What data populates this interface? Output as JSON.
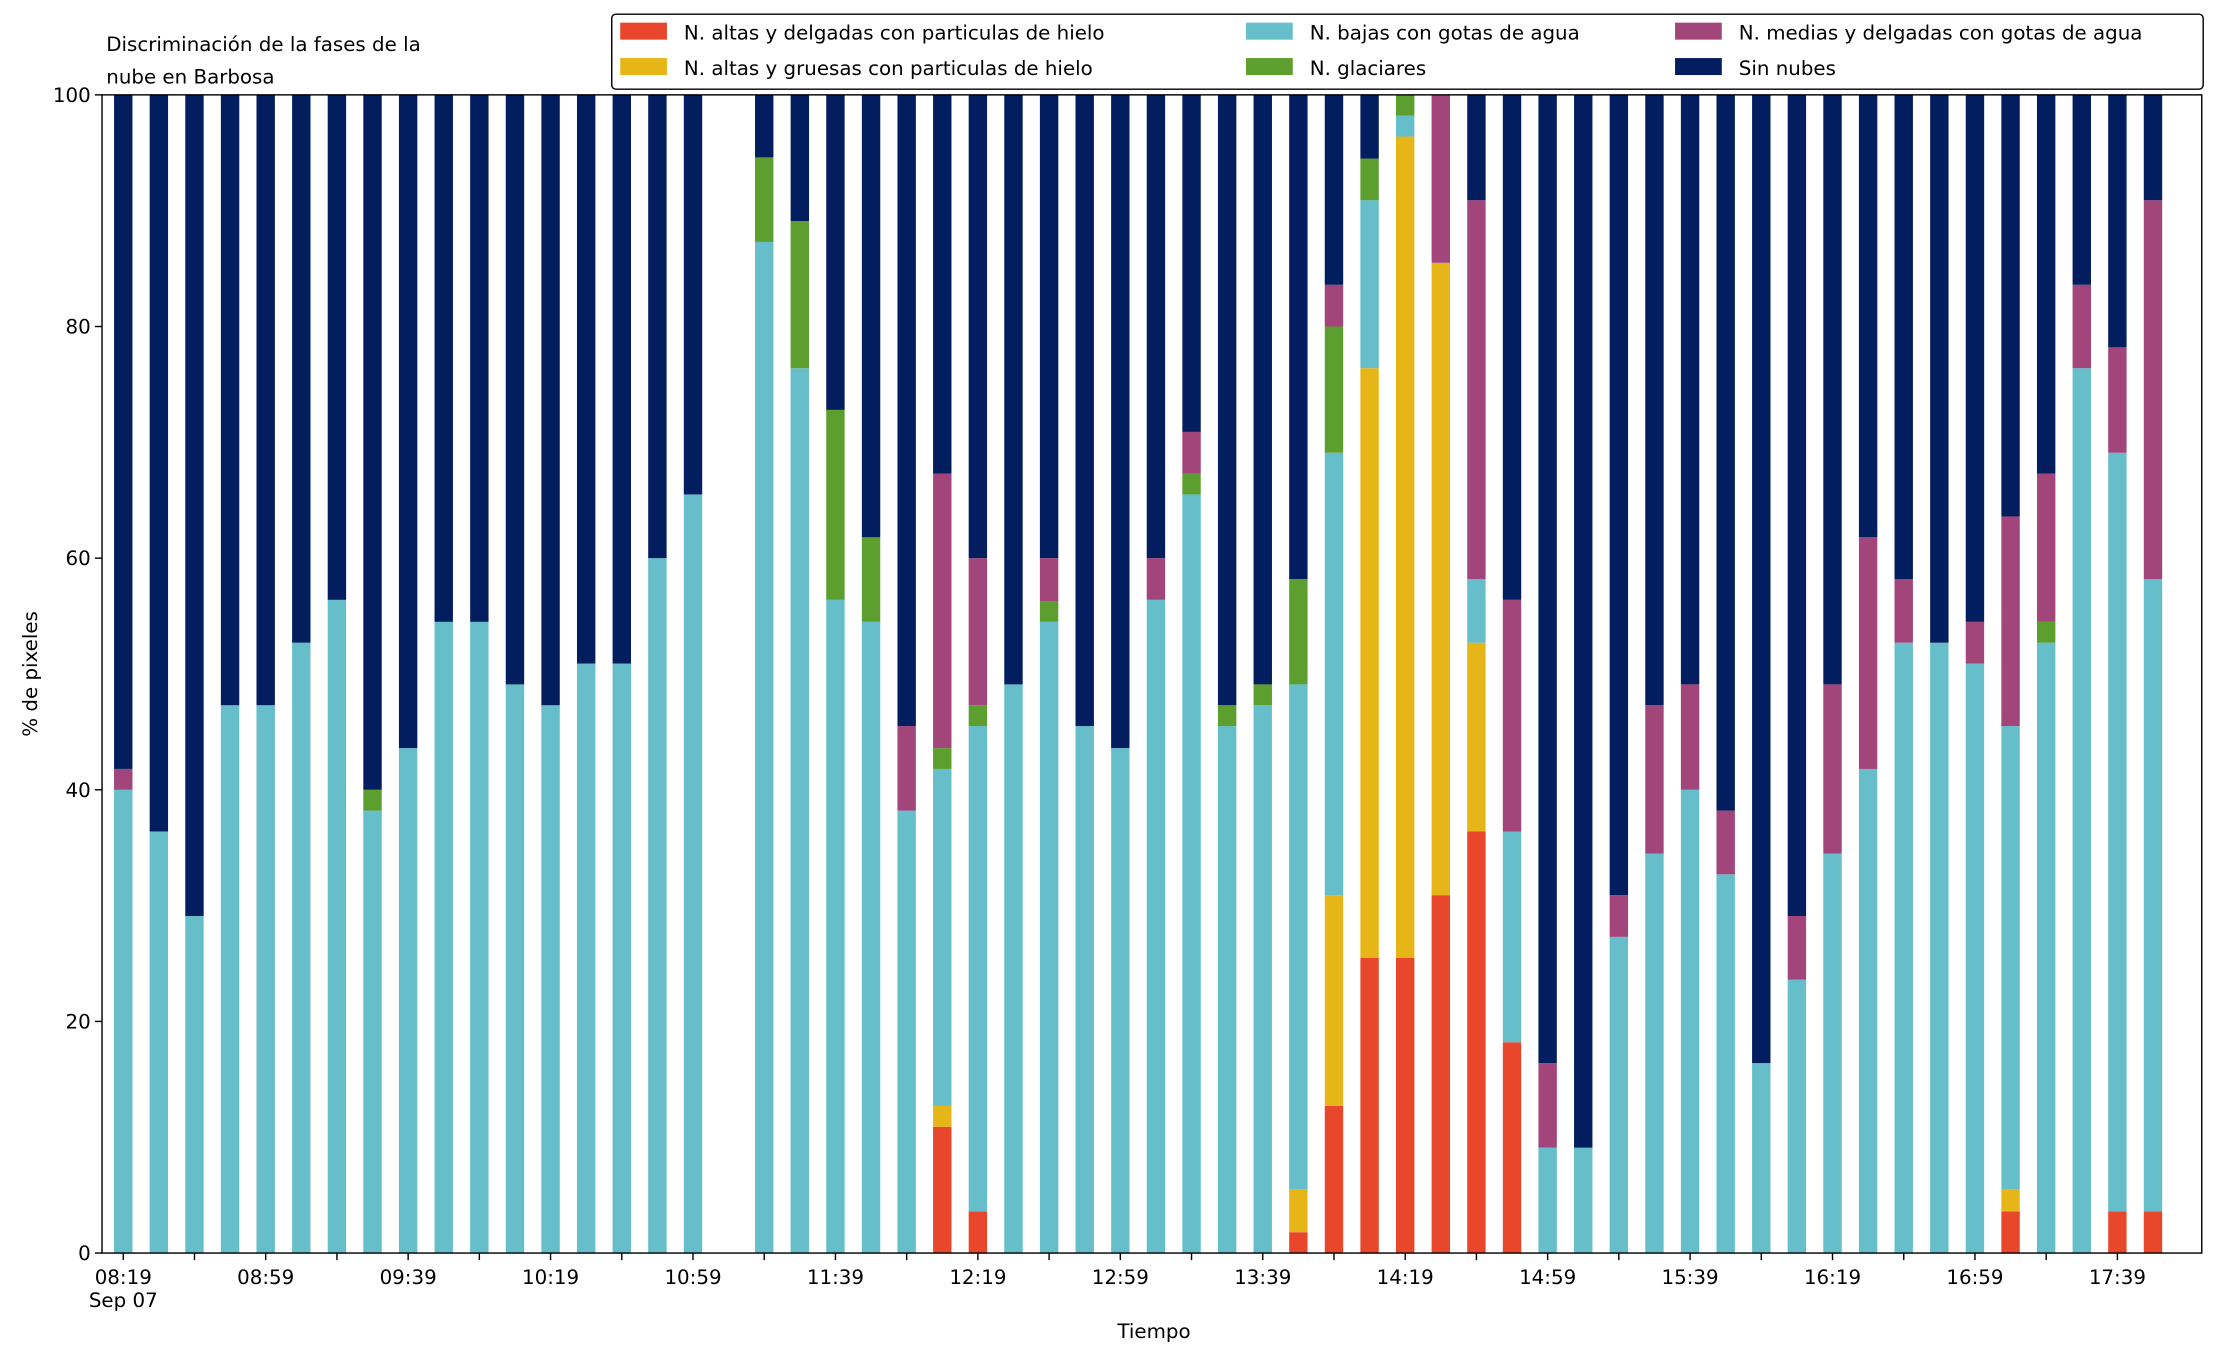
{
  "chart_data": {
    "type": "stacked_bar",
    "title": [
      "Discriminación de la fases de la",
      "nube en Barbosa"
    ],
    "xlabel": "Tiempo",
    "ylabel": "% de pixeles",
    "date_label": "Sep 07",
    "categories": [
      "08:19",
      null,
      null,
      null,
      "08:59",
      null,
      null,
      null,
      "09:39",
      null,
      null,
      null,
      "10:19",
      null,
      null,
      null,
      "10:59",
      null,
      null,
      null,
      "11:39",
      null,
      null,
      null,
      "12:19",
      null,
      null,
      null,
      "12:59",
      null,
      null,
      null,
      "13:39",
      null,
      null,
      null,
      "14:19",
      null,
      null,
      null,
      "14:59",
      null,
      null,
      null,
      "15:39",
      null,
      null,
      null,
      "16:19",
      null,
      null,
      null,
      "16:59",
      null,
      null,
      null,
      "17:39",
      null
    ],
    "ylim": [
      0,
      100
    ],
    "yticks": [
      0,
      20,
      40,
      60,
      80,
      100
    ],
    "legend": "top-right",
    "series": [
      {
        "name": "N. altas y delgadas con particulas de hielo",
        "color": "#e8472b",
        "values": [
          0,
          0,
          0,
          0,
          0,
          0,
          0,
          0,
          0,
          0,
          0,
          0,
          0,
          0,
          0,
          0,
          0,
          0,
          0,
          0,
          0,
          0,
          0,
          10.9,
          3.6,
          0,
          0,
          0,
          0,
          0,
          0,
          0,
          0,
          1.8,
          12.7,
          25.5,
          25.5,
          30.9,
          36.4,
          18.2,
          0,
          0,
          0,
          0,
          0,
          0,
          0,
          0,
          0,
          0,
          0,
          0,
          0,
          3.6,
          0,
          0,
          3.6,
          3.6
        ]
      },
      {
        "name": "N. altas y gruesas con particulas de hielo",
        "color": "#e6b619",
        "values": [
          0,
          0,
          0,
          0,
          0,
          0,
          0,
          0,
          0,
          0,
          0,
          0,
          0,
          0,
          0,
          0,
          0,
          0,
          0,
          0,
          0,
          0,
          0,
          1.8,
          0,
          0,
          0,
          0,
          0,
          0,
          0,
          0,
          0,
          3.7,
          18.2,
          50.9,
          70.9,
          54.6,
          16.3,
          0,
          0,
          0,
          0,
          0,
          0,
          0,
          0,
          0,
          0,
          0,
          0,
          0,
          0,
          1.9,
          0,
          0,
          0,
          0
        ]
      },
      {
        "name": "N. bajas con gotas de agua",
        "color": "#65bec9",
        "values": [
          40,
          36.4,
          29.1,
          47.3,
          47.3,
          52.7,
          56.4,
          38.2,
          43.6,
          54.5,
          54.5,
          49.1,
          47.3,
          50.9,
          50.9,
          60,
          65.5,
          0,
          87.3,
          76.4,
          56.4,
          54.5,
          38.2,
          29.1,
          41.9,
          49.1,
          54.5,
          45.5,
          43.6,
          56.4,
          65.5,
          45.5,
          47.3,
          43.6,
          38.2,
          14.5,
          1.8,
          0,
          5.5,
          18.2,
          9.1,
          9.1,
          27.3,
          34.5,
          40,
          32.7,
          16.4,
          23.6,
          34.5,
          41.8,
          52.7,
          52.7,
          50.9,
          40,
          52.7,
          76.4,
          65.5,
          54.6
        ]
      },
      {
        "name": "N. glaciares",
        "color": "#5d9f2f",
        "values": [
          0,
          0,
          0,
          0,
          0,
          0,
          0,
          1.8,
          0,
          0,
          0,
          0,
          0,
          0,
          0,
          0,
          0,
          0,
          7.3,
          12.7,
          16.4,
          7.3,
          0,
          1.8,
          1.8,
          0,
          1.8,
          0,
          0,
          0,
          1.8,
          1.8,
          1.8,
          9.1,
          10.9,
          3.6,
          1.8,
          0,
          0,
          0,
          0,
          0,
          0,
          0,
          0,
          0,
          0,
          0,
          0,
          0,
          0,
          0,
          0,
          0,
          1.8,
          0,
          0,
          0
        ]
      },
      {
        "name": "N. medias y delgadas con gotas de agua",
        "color": "#a2457a",
        "values": [
          1.8,
          0,
          0,
          0,
          0,
          0,
          0,
          0,
          0,
          0,
          0,
          0,
          0,
          0,
          0,
          0,
          0,
          0,
          0,
          0,
          0,
          0,
          7.3,
          23.7,
          12.7,
          0,
          3.7,
          0,
          0,
          3.6,
          3.6,
          0,
          0,
          0,
          3.6,
          0,
          0,
          14.5,
          32.7,
          20,
          7.3,
          0,
          3.6,
          12.8,
          9.1,
          5.5,
          0,
          5.5,
          14.6,
          20,
          5.5,
          0,
          3.6,
          18.1,
          12.8,
          7.2,
          9.1,
          32.7
        ]
      },
      {
        "name": "Sin nubes",
        "color": "#031e5e",
        "values": [
          58.2,
          63.6,
          70.9,
          52.7,
          52.7,
          47.3,
          43.6,
          60,
          56.4,
          45.5,
          45.5,
          50.9,
          52.7,
          49.1,
          49.1,
          40,
          34.5,
          0,
          5.4,
          10.9,
          27.2,
          38.2,
          54.5,
          32.7,
          40,
          50.9,
          40,
          54.5,
          56.4,
          40,
          29.1,
          52.7,
          50.9,
          41.8,
          16.4,
          5.5,
          0,
          0,
          9.1,
          43.6,
          83.6,
          90.9,
          69.1,
          52.7,
          50.9,
          61.8,
          83.6,
          70.9,
          50.9,
          38.2,
          41.8,
          47.3,
          45.5,
          36.4,
          32.7,
          16.4,
          21.8,
          9.1
        ]
      }
    ]
  }
}
